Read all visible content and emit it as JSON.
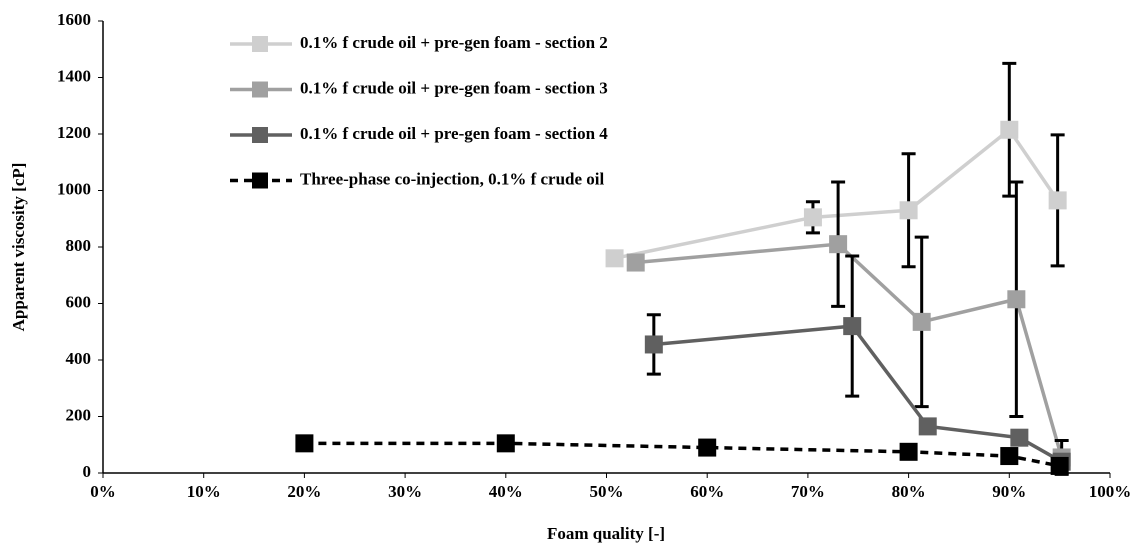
{
  "chart_data": {
    "type": "line",
    "ylabel": "Apparent viscosity [cP]",
    "xlabel": "Foam quality [-]",
    "xlim": [
      0,
      100
    ],
    "xticks": [
      {
        "value": 0,
        "label": "0%"
      },
      {
        "value": 10,
        "label": "10%"
      },
      {
        "value": 20,
        "label": "20%"
      },
      {
        "value": 30,
        "label": "30%"
      },
      {
        "value": 40,
        "label": "40%"
      },
      {
        "value": 50,
        "label": "50%"
      },
      {
        "value": 60,
        "label": "60%"
      },
      {
        "value": 70,
        "label": "70%"
      },
      {
        "value": 80,
        "label": "80%"
      },
      {
        "value": 90,
        "label": "90%"
      },
      {
        "value": 100,
        "label": "100%"
      }
    ],
    "ylim": [
      0,
      1600
    ],
    "yticks": [
      0,
      200,
      400,
      600,
      800,
      1000,
      1200,
      1400,
      1600
    ],
    "legend": "upper left",
    "series": [
      {
        "name": "0.1% f crude oil + pre-gen foam - section 2",
        "color": "#cfcfcf",
        "linestyle": "solid",
        "x": [
          50.8,
          70.5,
          80,
          90,
          94.8
        ],
        "values": [
          760,
          905,
          930,
          1215,
          965
        ],
        "errors": [
          null,
          55,
          200,
          235,
          232
        ]
      },
      {
        "name": "0.1% f crude oil + pre-gen foam - section 3",
        "color": "#a0a0a0",
        "linestyle": "solid",
        "x": [
          52.9,
          73,
          81.3,
          90.7,
          95.2
        ],
        "values": [
          745,
          810,
          535,
          615,
          55
        ],
        "errors": [
          null,
          220,
          300,
          415,
          60
        ]
      },
      {
        "name": "0.1% f crude oil + pre-gen foam - section 4",
        "color": "#606060",
        "linestyle": "solid",
        "x": [
          54.7,
          74.4,
          81.9,
          91,
          95.2
        ],
        "values": [
          455,
          520,
          165,
          125,
          40
        ],
        "errors": [
          105,
          248,
          null,
          null,
          null
        ]
      },
      {
        "name": "Three-phase co-injection, 0.1% f crude oil",
        "color": "#000000",
        "linestyle": "dashed",
        "x": [
          20,
          40,
          60,
          80,
          90,
          95
        ],
        "values": [
          105,
          105,
          90,
          75,
          60,
          25
        ],
        "errors": [
          null,
          null,
          null,
          null,
          null,
          null
        ]
      }
    ]
  }
}
